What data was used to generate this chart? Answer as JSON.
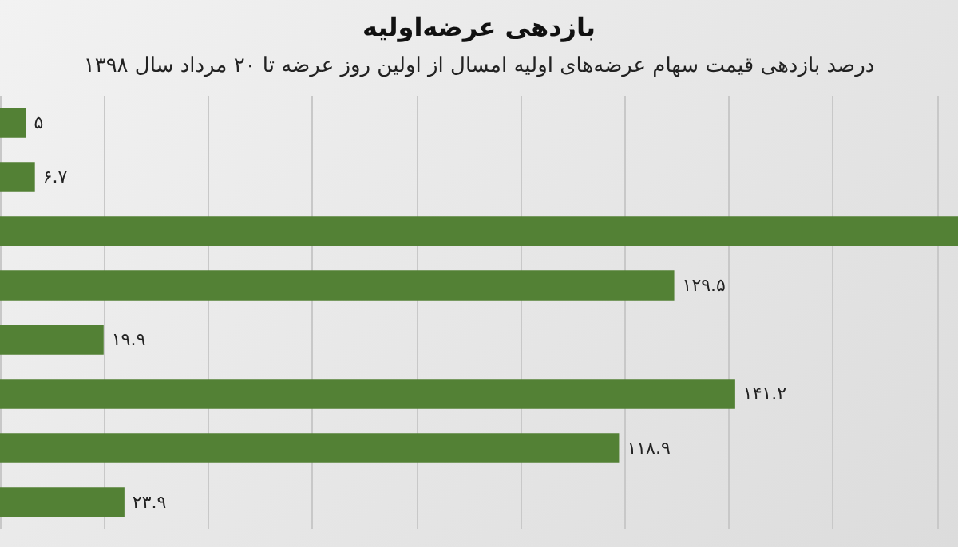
{
  "chart_data": {
    "type": "bar",
    "orientation": "horizontal",
    "title": "بازدهی عرضه‌اولیه",
    "subtitle": "درصد بازدهی قیمت سهام عرضه‌های اولیه امسال از اولین روز عرضه تا ۲۰ مرداد سال ۱۳۹۸",
    "categories": [
      null,
      null,
      null,
      null,
      null,
      null,
      null,
      null
    ],
    "values": [
      5,
      6.7,
      184,
      129.5,
      19.9,
      141.2,
      118.9,
      23.9
    ],
    "value_labels": [
      "۵",
      "۶.۷",
      null,
      "۱۲۹.۵",
      "۱۹.۹",
      "۱۴۱.۲",
      "۱۱۸.۹",
      "۲۳.۹"
    ],
    "color": "#538135",
    "xlim": [
      0,
      184
    ],
    "xticks": [
      {
        "value": 0,
        "label": null
      },
      {
        "value": 20,
        "label": null
      },
      {
        "value": 40,
        "label": null
      },
      {
        "value": 60,
        "label": null
      },
      {
        "value": 80,
        "label": null
      },
      {
        "value": 100,
        "label": null
      },
      {
        "value": 120,
        "label": null
      },
      {
        "value": 140,
        "label": null
      },
      {
        "value": 160,
        "label": null
      },
      {
        "value": 180,
        "label": null
      }
    ],
    "grid": "x",
    "tick_labels": false
  }
}
